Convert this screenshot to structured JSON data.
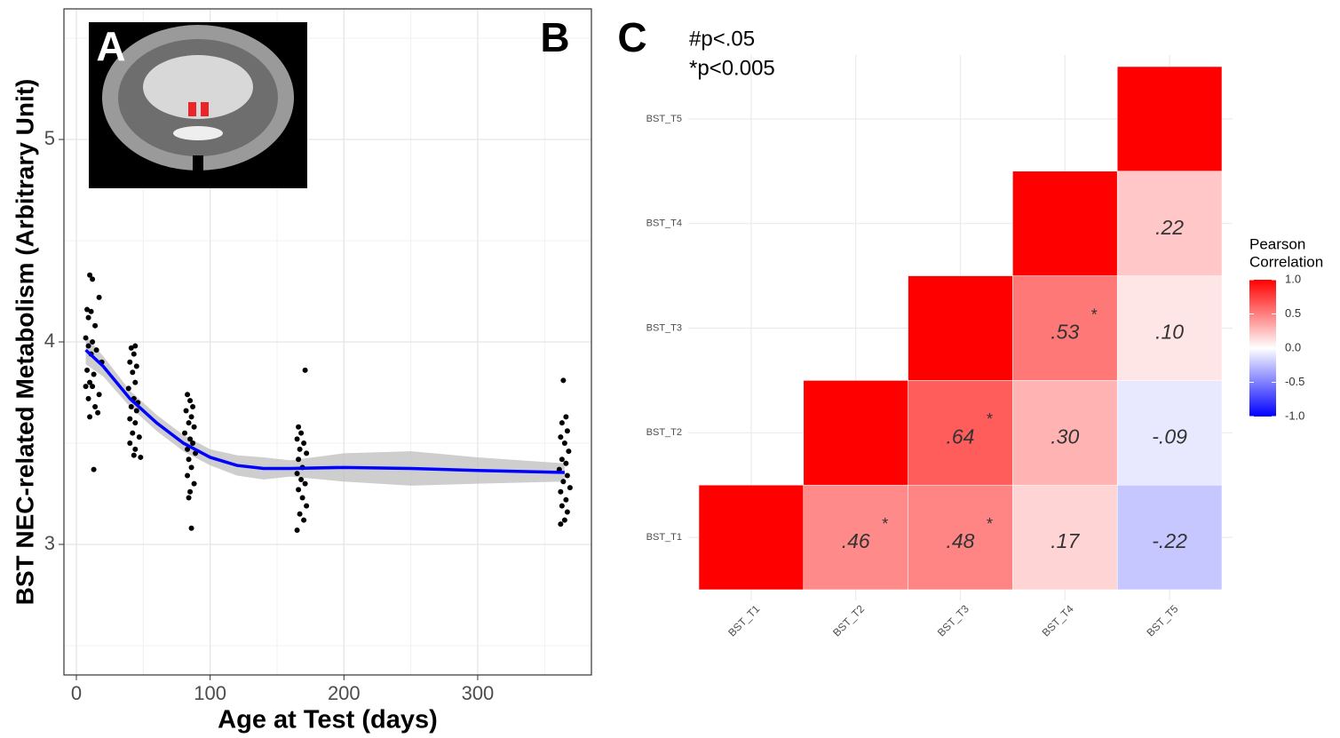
{
  "chart_data": [
    {
      "type": "scatter",
      "panel_labels": [
        "A",
        "B"
      ],
      "xlabel": "Age at Test (days)",
      "ylabel": "BST NEC-related Metabolism (Arbitrary Unit)",
      "xlim": [
        -9.3,
        385
      ],
      "ylim": [
        2.355,
        5.645
      ],
      "xticks": [
        0,
        100,
        200,
        300
      ],
      "yticks": [
        3,
        4,
        5
      ],
      "xminor": [
        50,
        150,
        250,
        350
      ],
      "yminor": [
        2.5,
        3.5,
        4.5,
        5.5
      ],
      "grid": true,
      "points": {
        "color": "#000000",
        "x": [
          10,
          12,
          17,
          8,
          11,
          9,
          14,
          7,
          12,
          9,
          15,
          11,
          19,
          8,
          13,
          10,
          7,
          12,
          17,
          9,
          14,
          16,
          10,
          13,
          44,
          41,
          43,
          40,
          45,
          42,
          44,
          39,
          43,
          46,
          41,
          45,
          40,
          44,
          42,
          47,
          40,
          44,
          43,
          48,
          83,
          85,
          87,
          82,
          86,
          84,
          88,
          81,
          85,
          87,
          83,
          89,
          84,
          86,
          83,
          88,
          85,
          84,
          86,
          171,
          166,
          168,
          165,
          170,
          167,
          172,
          166,
          169,
          165,
          168,
          171,
          166,
          169,
          172,
          167,
          170,
          165,
          364,
          366,
          363,
          367,
          362,
          365,
          368,
          363,
          366,
          361,
          367,
          364,
          369,
          362,
          366,
          363,
          367,
          365,
          362
        ],
        "values": [
          4.33,
          4.31,
          4.22,
          4.16,
          4.15,
          4.12,
          4.08,
          4.02,
          4.0,
          3.98,
          3.96,
          3.94,
          3.9,
          3.86,
          3.84,
          3.8,
          3.78,
          3.78,
          3.74,
          3.72,
          3.68,
          3.65,
          3.63,
          3.37,
          3.98,
          3.97,
          3.94,
          3.9,
          3.88,
          3.85,
          3.8,
          3.77,
          3.72,
          3.7,
          3.68,
          3.66,
          3.62,
          3.6,
          3.55,
          3.53,
          3.5,
          3.47,
          3.44,
          3.43,
          3.74,
          3.71,
          3.68,
          3.66,
          3.63,
          3.6,
          3.58,
          3.55,
          3.52,
          3.5,
          3.47,
          3.45,
          3.42,
          3.38,
          3.34,
          3.3,
          3.26,
          3.23,
          3.08,
          3.86,
          3.58,
          3.55,
          3.52,
          3.5,
          3.47,
          3.45,
          3.42,
          3.38,
          3.35,
          3.32,
          3.3,
          3.27,
          3.23,
          3.19,
          3.15,
          3.12,
          3.07,
          3.81,
          3.63,
          3.6,
          3.56,
          3.53,
          3.5,
          3.46,
          3.42,
          3.4,
          3.37,
          3.34,
          3.31,
          3.28,
          3.26,
          3.22,
          3.19,
          3.16,
          3.12,
          3.1
        ]
      },
      "fit": {
        "color": "#0000ff",
        "band_color": "#bebebe",
        "x": [
          7,
          20,
          40,
          60,
          80,
          100,
          120,
          140,
          160,
          200,
          250,
          300,
          365
        ],
        "values": [
          3.96,
          3.88,
          3.72,
          3.6,
          3.5,
          3.43,
          3.39,
          3.375,
          3.375,
          3.38,
          3.375,
          3.365,
          3.355
        ],
        "lower": [
          3.89,
          3.83,
          3.68,
          3.56,
          3.46,
          3.39,
          3.34,
          3.32,
          3.335,
          3.31,
          3.29,
          3.3,
          3.31
        ],
        "upper": [
          4.03,
          3.93,
          3.76,
          3.64,
          3.54,
          3.47,
          3.44,
          3.43,
          3.415,
          3.45,
          3.46,
          3.43,
          3.4
        ]
      }
    },
    {
      "type": "heatmap",
      "panel_label": "C",
      "annotations": [
        "#p<.05",
        "*p<0.005"
      ],
      "x_categories": [
        "BST_T1",
        "BST_T2",
        "BST_T3",
        "BST_T4",
        "BST_T5"
      ],
      "y_categories": [
        "BST_T1",
        "BST_T2",
        "BST_T3",
        "BST_T4",
        "BST_T5"
      ],
      "values": [
        [
          1,
          0.46,
          0.48,
          0.17,
          -0.22
        ],
        [
          null,
          1,
          0.64,
          0.3,
          -0.09
        ],
        [
          null,
          null,
          1,
          0.53,
          0.1
        ],
        [
          null,
          null,
          null,
          1,
          0.22
        ],
        [
          null,
          null,
          null,
          null,
          1
        ]
      ],
      "value_labels": [
        [
          null,
          ".46",
          ".48",
          ".17",
          "-.22"
        ],
        [
          null,
          null,
          ".64",
          ".30",
          "-.09"
        ],
        [
          null,
          null,
          null,
          ".53",
          ".10"
        ],
        [
          null,
          null,
          null,
          null,
          ".22"
        ],
        [
          null,
          null,
          null,
          null,
          null
        ]
      ],
      "stars": [
        [
          null,
          "*",
          "*",
          null,
          null
        ],
        [
          null,
          null,
          "*",
          null,
          null
        ],
        [
          null,
          null,
          null,
          "*",
          null
        ],
        [
          null,
          null,
          null,
          null,
          null
        ],
        [
          null,
          null,
          null,
          null,
          null
        ]
      ],
      "colorscale": {
        "low": "#0000ff",
        "mid": "#ffffff",
        "high": "#ff0000"
      },
      "clim": [
        -1,
        1
      ],
      "grid": true,
      "legend_title": [
        "Pearson",
        "Correlation"
      ],
      "legend_ticks": [
        {
          "value": 1,
          "label": "1.0"
        },
        0.5,
        {
          "value": 0,
          "label": "0.0"
        },
        -0.5,
        {
          "value": -1,
          "label": "-1.0"
        }
      ]
    }
  ]
}
